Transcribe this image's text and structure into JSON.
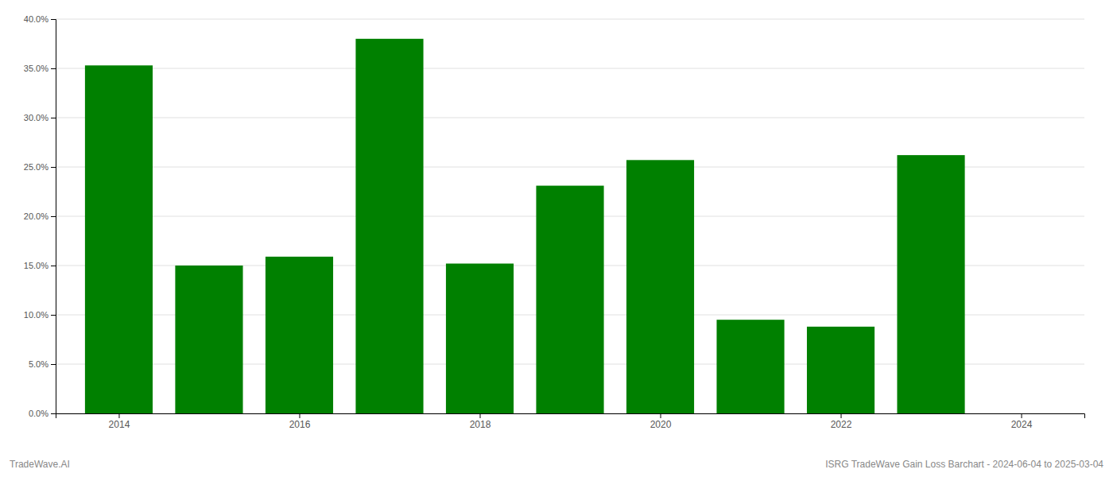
{
  "chart_data": {
    "type": "bar",
    "x": [
      2014,
      2015,
      2016,
      2017,
      2018,
      2019,
      2020,
      2021,
      2022,
      2023
    ],
    "values": [
      0.353,
      0.15,
      0.159,
      0.38,
      0.152,
      0.231,
      0.257,
      0.095,
      0.088,
      0.262
    ],
    "color": "#008000",
    "xlim": [
      2013.3,
      2024.7
    ],
    "xticks": [
      2014,
      2016,
      2018,
      2020,
      2022,
      2024
    ],
    "ylim": [
      0,
      0.4
    ],
    "yticks": [
      {
        "value": 0.0,
        "label": "0.0%"
      },
      {
        "value": 0.05,
        "label": "5.0%"
      },
      {
        "value": 0.1,
        "label": "10.0%"
      },
      {
        "value": 0.15,
        "label": "15.0%"
      },
      {
        "value": 0.2,
        "label": "20.0%"
      },
      {
        "value": 0.25,
        "label": "25.0%"
      },
      {
        "value": 0.3,
        "label": "30.0%"
      },
      {
        "value": 0.35,
        "label": "35.0%"
      },
      {
        "value": 0.4,
        "label": "40.0%"
      }
    ],
    "grid": true,
    "annotations": [
      "TradeWave.AI",
      "ISRG TradeWave Gain Loss Barchart - 2024-06-04 to 2025-03-04"
    ]
  }
}
